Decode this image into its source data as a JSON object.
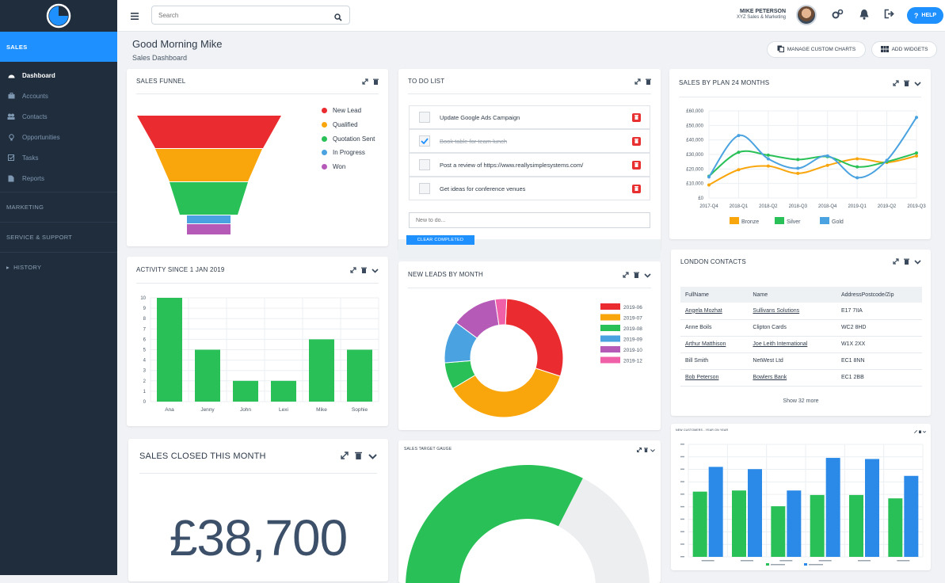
{
  "colors": {
    "red": "#ea2b30",
    "orange": "#f9a60d",
    "green": "#29c157",
    "blue": "#4aa3e0",
    "purple": "#b65ab8",
    "pink": "#f060a8",
    "accent": "#1e90ff"
  },
  "sidebar": {
    "sections": [
      {
        "label": "SALES"
      },
      {
        "label": "MARKETING"
      },
      {
        "label": "SERVICE & SUPPORT"
      },
      {
        "label": "HISTORY"
      }
    ],
    "items": [
      {
        "label": "Dashboard",
        "icon": "dashboard-icon"
      },
      {
        "label": "Accounts",
        "icon": "accounts-icon"
      },
      {
        "label": "Contacts",
        "icon": "contacts-icon"
      },
      {
        "label": "Opportunities",
        "icon": "lightbulb-icon"
      },
      {
        "label": "Tasks",
        "icon": "tasks-icon"
      },
      {
        "label": "Reports",
        "icon": "reports-icon"
      }
    ]
  },
  "topbar": {
    "search_placeholder": "Search",
    "user_name": "MIKE PETERSON",
    "user_company": "XYZ Sales & Marketing",
    "help_label": "HELP"
  },
  "page": {
    "greeting": "Good Morning Mike",
    "subtitle": "Sales Dashboard",
    "manage_label": "MANAGE CUSTOM CHARTS",
    "add_label": "ADD WIDGETS"
  },
  "funnel": {
    "title": "SALES FUNNEL",
    "legend": [
      "New Lead",
      "Qualified",
      "Quotation Sent",
      "In Progress",
      "Won"
    ]
  },
  "todo": {
    "title": "TO DO LIST",
    "items": [
      {
        "text": "Update Google Ads Campaign",
        "done": false
      },
      {
        "text": "Book table for team lunch",
        "done": true
      },
      {
        "text": "Post a review of https://www.reallysimplesystems.com/",
        "done": false
      },
      {
        "text": "Get ideas for conference venues",
        "done": false
      }
    ],
    "new_placeholder": "New to do...",
    "clear_label": "CLEAR COMPLETED"
  },
  "plan_chart": {
    "title": "SALES BY PLAN 24 MONTHS",
    "chart_data": {
      "type": "line",
      "x": [
        "2017-Q4",
        "2018-Q1",
        "2018-Q2",
        "2018-Q3",
        "2018-Q4",
        "2019-Q1",
        "2019-Q2",
        "2019-Q3"
      ],
      "yticks": [
        "£60,000",
        "£50,000",
        "£40,000",
        "£30,000",
        "£20,000",
        "£10,000",
        "£0"
      ],
      "ylim": [
        0,
        60000
      ],
      "series": [
        {
          "name": "Bronze",
          "values": [
            9000,
            19500,
            22000,
            17000,
            22500,
            27000,
            24500,
            29000
          ]
        },
        {
          "name": "Silver",
          "values": [
            15000,
            31500,
            29500,
            26500,
            28500,
            21500,
            25000,
            31000
          ]
        },
        {
          "name": "Gold",
          "values": [
            14500,
            43000,
            27000,
            20500,
            29000,
            14000,
            26000,
            55500
          ]
        }
      ]
    }
  },
  "activity": {
    "title": "ACTIVITY SINCE 1 JAN 2019",
    "chart_data": {
      "type": "bar",
      "categories": [
        "Ana",
        "Jenny",
        "John",
        "Lexi",
        "Mike",
        "Sophie"
      ],
      "values": [
        10,
        5,
        2,
        2,
        6,
        5
      ],
      "ylim": [
        0,
        10
      ],
      "yticks": [
        "10",
        "9",
        "8",
        "7",
        "6",
        "5",
        "4",
        "3",
        "2",
        "1",
        "0"
      ]
    }
  },
  "leads": {
    "title": "NEW LEADS BY MONTH",
    "chart_data": {
      "type": "pie",
      "legend": [
        "2019-06",
        "2019-07",
        "2019-08",
        "2019-09",
        "2019-10",
        "2019-12"
      ],
      "values": [
        28,
        35,
        7,
        11,
        12,
        3
      ]
    }
  },
  "contacts": {
    "title": "LONDON CONTACTS",
    "headers": [
      "FullName",
      "Name",
      "AddressPostcode/Zip"
    ],
    "rows": [
      [
        "Angela Mozhat",
        "Sullivans Solutions",
        "E17 7IIA"
      ],
      [
        "Anne Boils",
        "Clipton Cards",
        "WC2 8HD"
      ],
      [
        "Arthur Matthison",
        "Joe Leith International",
        "W1X 2XX"
      ],
      [
        "Bill Smith",
        "NetWest Ltd",
        "EC1 8NN"
      ],
      [
        "Bob Peterson",
        "Bowlers Bank",
        "EC1 2BB"
      ]
    ],
    "show_more": "Show 32 more"
  },
  "closed": {
    "title": "SALES CLOSED THIS MONTH",
    "value": "£38,700"
  },
  "gauge": {
    "title": "SALES TARGET GAUGE",
    "chart_data": {
      "type": "gauge",
      "value": 0.65
    }
  },
  "newcust": {
    "title": "NEW CUSTOMERS - YEAR ON YEAR",
    "chart_data": {
      "type": "bar",
      "series": [
        {
          "values": [
            0.58,
            0.59,
            0.45,
            0.55,
            0.55,
            0.52
          ]
        },
        {
          "values": [
            0.8,
            0.78,
            0.59,
            0.88,
            0.87,
            0.72
          ]
        }
      ]
    }
  }
}
